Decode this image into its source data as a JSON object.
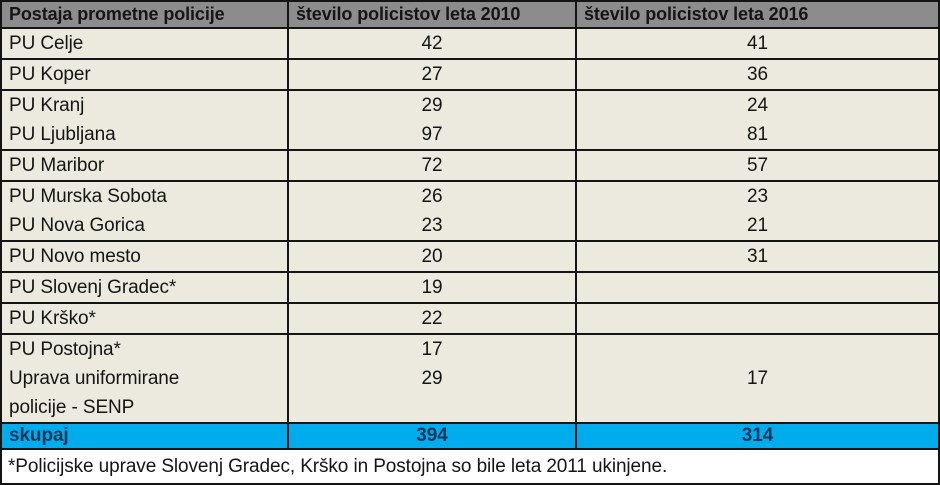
{
  "chart_data": {
    "type": "table",
    "columns": [
      "Postaja prometne policije",
      "število policistov leta 2010",
      "število policistov leta 2016"
    ],
    "rows": [
      {
        "station": "PU Celje",
        "y2010": "42",
        "y2016": "41"
      },
      {
        "station": "PU Koper",
        "y2010": "27",
        "y2016": "36"
      },
      {
        "station": "PU Kranj",
        "y2010": "29",
        "y2016": "24"
      },
      {
        "station": "PU Ljubljana",
        "y2010": "97",
        "y2016": "81"
      },
      {
        "station": "PU Maribor",
        "y2010": "72",
        "y2016": "57"
      },
      {
        "station": "PU Murska Sobota",
        "y2010": "26",
        "y2016": "23"
      },
      {
        "station": "PU Nova Gorica",
        "y2010": "23",
        "y2016": "21"
      },
      {
        "station": "PU Novo mesto",
        "y2010": "20",
        "y2016": "31"
      },
      {
        "station": "PU Slovenj Gradec*",
        "y2010": "19",
        "y2016": ""
      },
      {
        "station": "PU Krško*",
        "y2010": "22",
        "y2016": ""
      },
      {
        "station": "PU Postojna*",
        "y2010": "17",
        "y2016": ""
      },
      {
        "station": "Uprava uniformirane\npolicije - SENP",
        "y2010": "29",
        "y2016": "17"
      }
    ],
    "total": {
      "label": "skupaj",
      "y2010": "394",
      "y2016": "314"
    },
    "footnote": "*Policijske uprave Slovenj Gradec, Krško in Postojna so bile leta 2011 ukinjene.",
    "layout": {
      "row_groups": [
        [
          0
        ],
        [
          1
        ],
        [
          2,
          3
        ],
        [
          4
        ],
        [
          5,
          6
        ],
        [
          7
        ],
        [
          8
        ],
        [
          9
        ],
        [
          10,
          11
        ]
      ],
      "grid": "off",
      "legend": "none"
    }
  },
  "colors": {
    "header_bg": "#8c8c8c",
    "body_bg": "#eceadf",
    "border": "#141414",
    "total_bg": "#00acec",
    "total_text": "#12365c",
    "footnote_bg": "#ffffff",
    "text": "#151515"
  }
}
